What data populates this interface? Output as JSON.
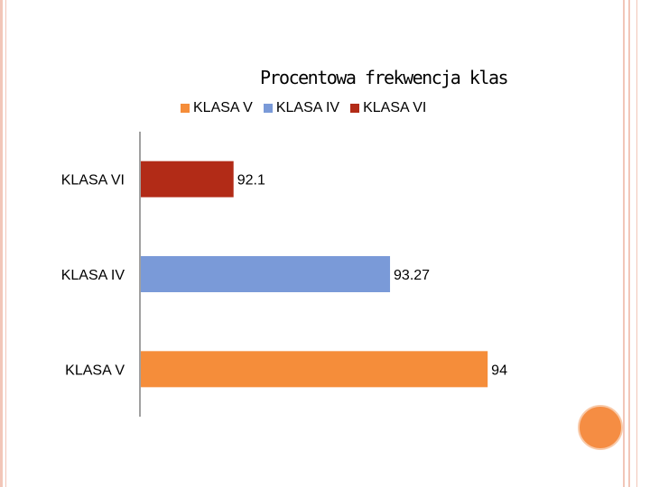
{
  "chart_data": {
    "type": "bar",
    "orientation": "horizontal",
    "title": "Procentowa frekwencja klas",
    "categories": [
      "KLASA VI",
      "KLASA IV",
      "KLASA V"
    ],
    "values": [
      92.1,
      93.27,
      94
    ],
    "data_labels": [
      "92.1",
      "93.27",
      "94"
    ],
    "colors": [
      "#b22b17",
      "#7a9ad8",
      "#f58d3a"
    ],
    "legend": [
      {
        "label": "KLASA V",
        "color": "#f58d3a"
      },
      {
        "label": "KLASA IV",
        "color": "#7a9ad8"
      },
      {
        "label": "KLASA VI",
        "color": "#b22b17"
      }
    ],
    "legend_position": "top",
    "xlim": [
      91.4,
      94.1
    ],
    "grid": false,
    "axis_line_color": "#808080"
  },
  "theme": {
    "frame_color": "#f2c6b8",
    "accent_circle_color": "#f58d43"
  }
}
